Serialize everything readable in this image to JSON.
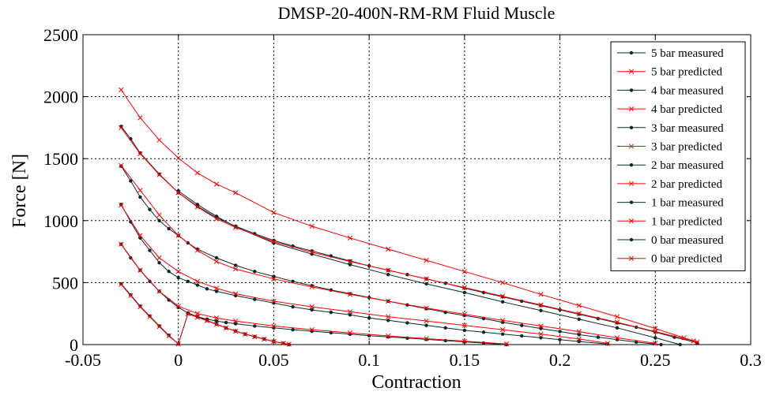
{
  "colors": {
    "measured": "#0a2a2a",
    "predicted": "#ff0000",
    "grid": "#000000",
    "background": "#ffffff"
  },
  "chart_data": {
    "type": "line",
    "title": "DMSP-20-400N-RM-RM Fluid Muscle",
    "xlabel": "Contraction",
    "ylabel": "Force [N]",
    "xlim": [
      -0.05,
      0.3
    ],
    "ylim": [
      0,
      2500
    ],
    "xticks": [
      -0.05,
      0,
      0.05,
      0.1,
      0.15,
      0.2,
      0.25,
      0.3
    ],
    "xtick_labels": [
      "-0.05",
      "0",
      "0.05",
      "0.1",
      "0.15",
      "0.2",
      "0.25",
      "0.3"
    ],
    "yticks": [
      0,
      500,
      1000,
      1500,
      2000,
      2500
    ],
    "ytick_labels": [
      "0",
      "500",
      "1000",
      "1500",
      "2000",
      "2500"
    ],
    "grid": true,
    "legend_position": "top-right",
    "series": [
      {
        "name": "5 bar measured",
        "kind": "measured",
        "x": [
          0,
          0.01,
          0.02,
          0.03,
          0.05,
          0.07,
          0.09,
          0.11,
          0.13,
          0.15,
          0.17,
          0.19,
          0.21,
          0.23,
          0.25,
          0.263
        ],
        "y": [
          1240,
          1130,
          1035,
          950,
          820,
          730,
          645,
          565,
          490,
          420,
          345,
          275,
          205,
          135,
          55,
          0
        ]
      },
      {
        "name": "5 bar predicted",
        "kind": "predicted",
        "x": [
          -0.03,
          -0.02,
          -0.01,
          0,
          0.01,
          0.02,
          0.03,
          0.05,
          0.07,
          0.09,
          0.11,
          0.13,
          0.15,
          0.17,
          0.19,
          0.21,
          0.23,
          0.25,
          0.265,
          0.272
        ],
        "y": [
          2055,
          1830,
          1650,
          1505,
          1385,
          1295,
          1225,
          1065,
          955,
          860,
          770,
          680,
          590,
          500,
          405,
          315,
          225,
          130,
          55,
          20
        ]
      },
      {
        "name": "4 bar measured",
        "kind": "measured",
        "x": [
          -0.03,
          -0.025,
          -0.02,
          -0.01,
          0,
          0.01,
          0.02,
          0.03,
          0.04,
          0.05,
          0.06,
          0.07,
          0.08,
          0.09,
          0.1,
          0.11,
          0.12,
          0.13,
          0.14,
          0.15,
          0.16,
          0.17,
          0.18,
          0.19,
          0.2,
          0.21,
          0.22,
          0.23,
          0.24,
          0.25,
          0.26,
          0.272
        ],
        "y": [
          1760,
          1660,
          1545,
          1375,
          1225,
          1115,
          1025,
          955,
          895,
          840,
          795,
          755,
          715,
          675,
          635,
          600,
          565,
          530,
          495,
          455,
          420,
          385,
          350,
          315,
          280,
          245,
          210,
          175,
          140,
          100,
          60,
          15
        ]
      },
      {
        "name": "4 bar predicted",
        "kind": "predicted",
        "x": [
          -0.03,
          -0.02,
          -0.01,
          0,
          0.01,
          0.02,
          0.03,
          0.05,
          0.07,
          0.09,
          0.11,
          0.13,
          0.15,
          0.17,
          0.19,
          0.21,
          0.23,
          0.25,
          0.27
        ],
        "y": [
          1750,
          1540,
          1370,
          1225,
          1110,
          1015,
          945,
          830,
          745,
          670,
          600,
          530,
          460,
          390,
          320,
          250,
          180,
          105,
          30
        ]
      },
      {
        "name": "3 bar measured",
        "kind": "measured",
        "x": [
          -0.03,
          -0.025,
          -0.02,
          -0.015,
          -0.01,
          -0.005,
          0,
          0.005,
          0.01,
          0.02,
          0.03,
          0.04,
          0.05,
          0.06,
          0.07,
          0.08,
          0.09,
          0.1,
          0.11,
          0.12,
          0.13,
          0.14,
          0.15,
          0.16,
          0.17,
          0.18,
          0.19,
          0.2,
          0.21,
          0.22,
          0.23,
          0.24,
          0.253
        ],
        "y": [
          1440,
          1320,
          1190,
          1090,
          1000,
          935,
          880,
          820,
          770,
          700,
          640,
          590,
          550,
          510,
          475,
          440,
          410,
          380,
          350,
          320,
          290,
          260,
          235,
          210,
          180,
          155,
          130,
          105,
          80,
          60,
          40,
          20,
          0
        ]
      },
      {
        "name": "3 bar predicted",
        "kind": "predicted",
        "x": [
          -0.03,
          -0.02,
          -0.01,
          0,
          0.01,
          0.02,
          0.03,
          0.05,
          0.07,
          0.09,
          0.11,
          0.13,
          0.15,
          0.17,
          0.19,
          0.21,
          0.23,
          0.25
        ],
        "y": [
          1445,
          1245,
          1045,
          880,
          760,
          670,
          610,
          530,
          465,
          405,
          350,
          295,
          245,
          195,
          150,
          105,
          55,
          10
        ]
      },
      {
        "name": "2 bar measured",
        "kind": "measured",
        "x": [
          -0.03,
          -0.025,
          -0.02,
          -0.015,
          -0.01,
          -0.005,
          0,
          0.005,
          0.01,
          0.015,
          0.02,
          0.03,
          0.04,
          0.05,
          0.06,
          0.07,
          0.08,
          0.09,
          0.1,
          0.11,
          0.12,
          0.13,
          0.14,
          0.15,
          0.16,
          0.17,
          0.18,
          0.19,
          0.2,
          0.21,
          0.225
        ],
        "y": [
          1130,
          990,
          860,
          760,
          660,
          590,
          540,
          510,
          480,
          450,
          430,
          395,
          365,
          335,
          305,
          280,
          260,
          240,
          215,
          195,
          175,
          155,
          135,
          115,
          100,
          85,
          70,
          55,
          40,
          25,
          5
        ]
      },
      {
        "name": "2 bar predicted",
        "kind": "predicted",
        "x": [
          -0.03,
          -0.02,
          -0.01,
          0,
          0.01,
          0.02,
          0.03,
          0.05,
          0.07,
          0.09,
          0.11,
          0.13,
          0.15,
          0.17,
          0.19,
          0.21,
          0.225
        ],
        "y": [
          1125,
          880,
          700,
          590,
          510,
          455,
          410,
          350,
          305,
          265,
          225,
          190,
          155,
          120,
          85,
          45,
          10
        ]
      },
      {
        "name": "1 bar measured",
        "kind": "measured",
        "x": [
          -0.03,
          -0.025,
          -0.02,
          -0.015,
          -0.01,
          -0.005,
          0,
          0.005,
          0.01,
          0.015,
          0.02,
          0.025,
          0.03,
          0.04,
          0.05,
          0.06,
          0.07,
          0.08,
          0.09,
          0.1,
          0.11,
          0.12,
          0.13,
          0.14,
          0.15,
          0.16,
          0.172
        ],
        "y": [
          810,
          700,
          600,
          510,
          430,
          360,
          300,
          255,
          225,
          205,
          190,
          178,
          168,
          150,
          135,
          120,
          108,
          96,
          84,
          72,
          62,
          52,
          42,
          32,
          22,
          12,
          0
        ]
      },
      {
        "name": "1 bar predicted",
        "kind": "predicted",
        "x": [
          -0.03,
          -0.02,
          -0.01,
          0,
          0.01,
          0.02,
          0.03,
          0.05,
          0.07,
          0.09,
          0.11,
          0.13,
          0.15,
          0.172
        ],
        "y": [
          810,
          600,
          430,
          310,
          250,
          215,
          190,
          150,
          120,
          95,
          70,
          48,
          28,
          5
        ]
      },
      {
        "name": "0 bar measured",
        "kind": "measured",
        "x": [
          -0.03,
          -0.025,
          -0.02,
          -0.015,
          -0.01,
          -0.005,
          0,
          0.005,
          0.01,
          0.015,
          0.02,
          0.025,
          0.03,
          0.035,
          0.04,
          0.045,
          0.05,
          0.055,
          0.058
        ],
        "y": [
          490,
          400,
          310,
          230,
          150,
          75,
          5,
          250,
          225,
          195,
          165,
          135,
          110,
          85,
          65,
          45,
          25,
          10,
          0
        ]
      },
      {
        "name": "0 bar predicted",
        "kind": "predicted",
        "x": [
          -0.03,
          -0.025,
          -0.02,
          -0.015,
          -0.01,
          -0.005,
          0,
          0.005,
          0.01,
          0.015,
          0.02,
          0.025,
          0.03,
          0.035,
          0.04,
          0.045,
          0.05,
          0.055,
          0.058
        ],
        "y": [
          485,
          395,
          305,
          225,
          145,
          70,
          5,
          248,
          220,
          192,
          163,
          134,
          108,
          84,
          63,
          43,
          25,
          11,
          3
        ]
      }
    ]
  }
}
